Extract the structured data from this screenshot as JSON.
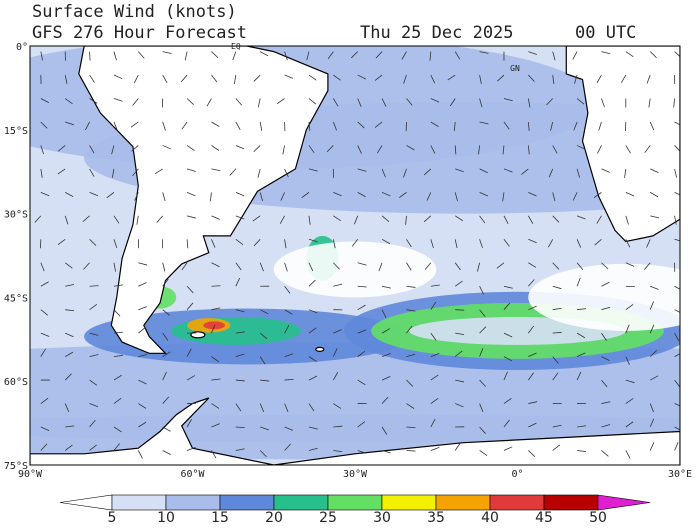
{
  "header": {
    "title": "Surface Wind (knots)",
    "subtitle": "GFS 276 Hour Forecast",
    "date": "Thu 25 Dec 2025",
    "time": "00 UTC"
  },
  "map": {
    "lat_labels": [
      "0°",
      "15°S",
      "30°S",
      "45°S",
      "60°S",
      "75°S"
    ],
    "lon_labels": [
      "90°W",
      "60°W",
      "30°W",
      "0°",
      "30°E"
    ],
    "place_labels": [
      "EQ",
      "GN"
    ]
  },
  "colorbar": {
    "labels": [
      5,
      10,
      15,
      20,
      25,
      30,
      35,
      40,
      45,
      50
    ],
    "colors": [
      "#ffffff",
      "#d6e0f5",
      "#a9bdea",
      "#5f88da",
      "#27c08c",
      "#63e063",
      "#f2f200",
      "#f5a300",
      "#e23a3a",
      "#b80000",
      "#e01fd0"
    ]
  }
}
